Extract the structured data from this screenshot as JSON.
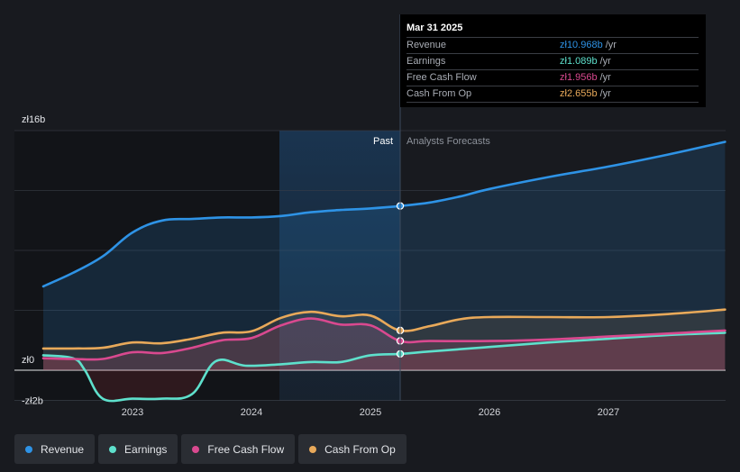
{
  "chart_data": {
    "type": "line",
    "currency_unit": "zł",
    "y_tick_labels": [
      "zł16b",
      "zł0",
      "-zł2b"
    ],
    "y_ticks": [
      16,
      0,
      -2
    ],
    "ylim": [
      -2,
      16
    ],
    "x_tick_labels": [
      "2023",
      "2024",
      "2025",
      "2026",
      "2027"
    ],
    "x_ticks": [
      2023,
      2024,
      2025,
      2026,
      2027
    ],
    "xlim": [
      2022.23,
      2027.98
    ],
    "divider_x": 2025.25,
    "forecast_shade_start": 2024.25,
    "past_label": "Past",
    "forecast_label": "Analysts Forecasts",
    "series": [
      {
        "name": "Revenue",
        "color": "#2e93e6",
        "points": [
          [
            2022.25,
            5.6
          ],
          [
            2022.5,
            6.5
          ],
          [
            2022.75,
            7.6
          ],
          [
            2023.0,
            9.2
          ],
          [
            2023.25,
            10.0
          ],
          [
            2023.5,
            10.1
          ],
          [
            2023.75,
            10.2
          ],
          [
            2024.0,
            10.2
          ],
          [
            2024.25,
            10.3
          ],
          [
            2024.5,
            10.55
          ],
          [
            2024.75,
            10.7
          ],
          [
            2025.0,
            10.8
          ],
          [
            2025.25,
            10.968
          ],
          [
            2025.5,
            11.2
          ],
          [
            2025.75,
            11.6
          ],
          [
            2026.0,
            12.1
          ],
          [
            2026.5,
            12.9
          ],
          [
            2027.0,
            13.6
          ],
          [
            2027.5,
            14.4
          ],
          [
            2027.98,
            15.25
          ]
        ]
      },
      {
        "name": "Earnings",
        "color": "#5ee0cc",
        "points": [
          [
            2022.25,
            1.0
          ],
          [
            2022.5,
            0.8
          ],
          [
            2022.6,
            0.0
          ],
          [
            2022.75,
            -1.9
          ],
          [
            2023.0,
            -1.9
          ],
          [
            2023.25,
            -1.9
          ],
          [
            2023.5,
            -1.6
          ],
          [
            2023.7,
            0.6
          ],
          [
            2023.95,
            0.3
          ],
          [
            2024.25,
            0.4
          ],
          [
            2024.5,
            0.55
          ],
          [
            2024.75,
            0.55
          ],
          [
            2025.0,
            1.0
          ],
          [
            2025.25,
            1.089
          ],
          [
            2025.5,
            1.25
          ],
          [
            2026.0,
            1.55
          ],
          [
            2026.5,
            1.85
          ],
          [
            2027.0,
            2.1
          ],
          [
            2027.5,
            2.35
          ],
          [
            2027.98,
            2.5
          ]
        ]
      },
      {
        "name": "Free Cash Flow",
        "color": "#d9498f",
        "points": [
          [
            2022.25,
            0.8
          ],
          [
            2022.5,
            0.75
          ],
          [
            2022.75,
            0.75
          ],
          [
            2023.0,
            1.2
          ],
          [
            2023.25,
            1.15
          ],
          [
            2023.5,
            1.5
          ],
          [
            2023.75,
            2.0
          ],
          [
            2024.0,
            2.15
          ],
          [
            2024.25,
            3.0
          ],
          [
            2024.5,
            3.45
          ],
          [
            2024.75,
            3.05
          ],
          [
            2025.0,
            3.0
          ],
          [
            2025.25,
            1.956
          ],
          [
            2025.5,
            1.95
          ],
          [
            2026.0,
            1.95
          ],
          [
            2026.5,
            2.05
          ],
          [
            2027.0,
            2.25
          ],
          [
            2027.5,
            2.45
          ],
          [
            2027.98,
            2.65
          ]
        ]
      },
      {
        "name": "Cash From Op",
        "color": "#e8a95a",
        "points": [
          [
            2022.25,
            1.45
          ],
          [
            2022.5,
            1.45
          ],
          [
            2022.75,
            1.5
          ],
          [
            2023.0,
            1.85
          ],
          [
            2023.25,
            1.8
          ],
          [
            2023.5,
            2.1
          ],
          [
            2023.75,
            2.5
          ],
          [
            2024.0,
            2.6
          ],
          [
            2024.25,
            3.5
          ],
          [
            2024.5,
            3.9
          ],
          [
            2024.75,
            3.6
          ],
          [
            2025.0,
            3.65
          ],
          [
            2025.25,
            2.655
          ],
          [
            2025.5,
            2.95
          ],
          [
            2025.75,
            3.4
          ],
          [
            2026.0,
            3.55
          ],
          [
            2026.5,
            3.55
          ],
          [
            2027.0,
            3.55
          ],
          [
            2027.5,
            3.75
          ],
          [
            2027.98,
            4.05
          ]
        ]
      }
    ]
  },
  "tooltip": {
    "date": "Mar 31 2025",
    "rows": [
      {
        "name": "Revenue",
        "value": "zł10.968b",
        "unit": "/yr",
        "color": "#2e93e6"
      },
      {
        "name": "Earnings",
        "value": "zł1.089b",
        "unit": "/yr",
        "color": "#5ee0cc"
      },
      {
        "name": "Free Cash Flow",
        "value": "zł1.956b",
        "unit": "/yr",
        "color": "#d9498f"
      },
      {
        "name": "Cash From Op",
        "value": "zł2.655b",
        "unit": "/yr",
        "color": "#e8a95a"
      }
    ]
  },
  "legend": {
    "items": [
      {
        "label": "Revenue",
        "color": "#2e93e6"
      },
      {
        "label": "Earnings",
        "color": "#5ee0cc"
      },
      {
        "label": "Free Cash Flow",
        "color": "#d9498f"
      },
      {
        "label": "Cash From Op",
        "color": "#e8a95a"
      }
    ]
  }
}
